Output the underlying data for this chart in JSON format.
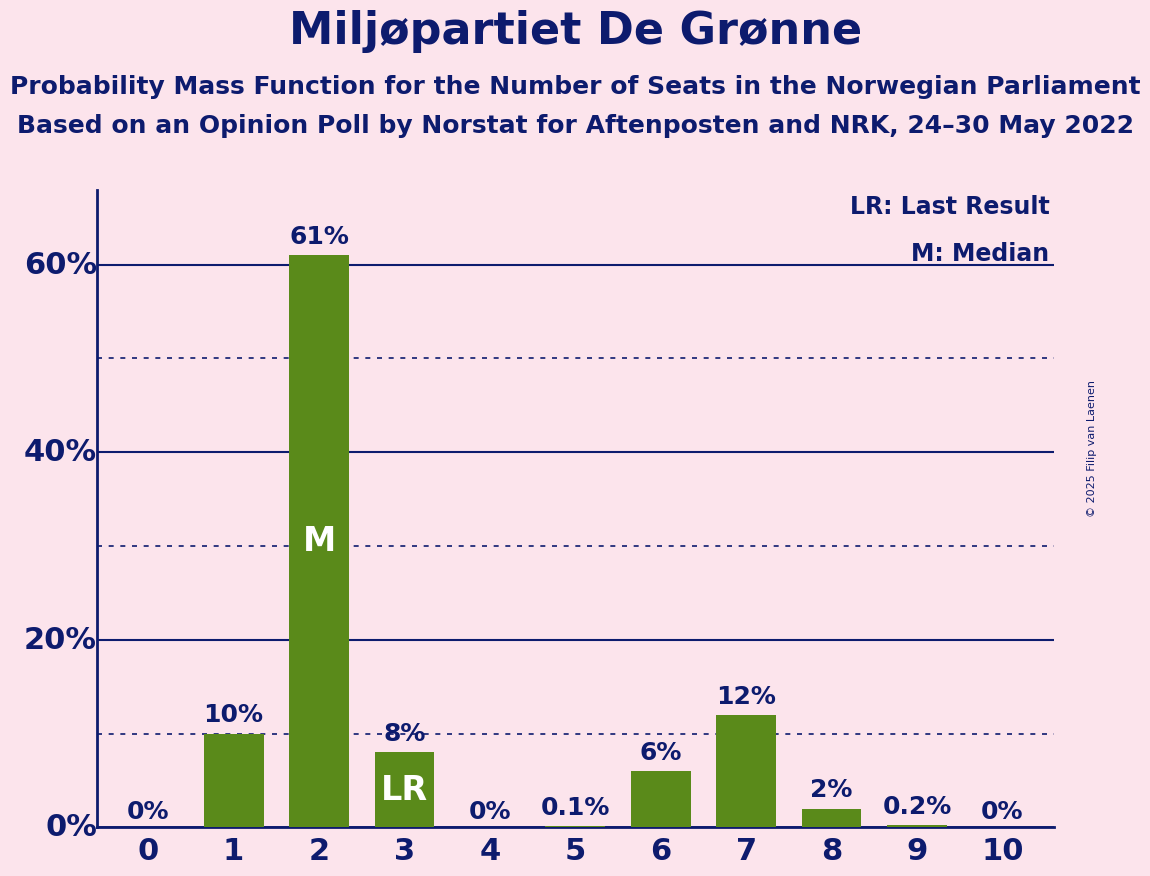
{
  "title": "Miljøpartiet De Grønne",
  "subtitle1": "Probability Mass Function for the Number of Seats in the Norwegian Parliament",
  "subtitle2": "Based on an Opinion Poll by Norstat for Aftenposten and NRK, 24–30 May 2022",
  "copyright": "© 2025 Filip van Laenen",
  "legend_lr": "LR: Last Result",
  "legend_m": "M: Median",
  "categories": [
    0,
    1,
    2,
    3,
    4,
    5,
    6,
    7,
    8,
    9,
    10
  ],
  "values": [
    0.0,
    10.0,
    61.0,
    8.0,
    0.0,
    0.1,
    6.0,
    12.0,
    2.0,
    0.2,
    0.0
  ],
  "bar_labels": [
    "0%",
    "10%",
    "61%",
    "8%",
    "0%",
    "0.1%",
    "6%",
    "12%",
    "2%",
    "0.2%",
    "0%"
  ],
  "special_labels": {
    "2": "M",
    "3": "LR"
  },
  "median_bar": 2,
  "lr_bar": 3,
  "bar_color": "#5a8a1a",
  "background_color": "#fce4ec",
  "title_color": "#0d1b6e",
  "axis_color": "#0d1b6e",
  "label_color": "#0d1b6e",
  "special_label_color": "#ffffff",
  "ylim": [
    0,
    68
  ],
  "yticks_solid": [
    0,
    20,
    40,
    60
  ],
  "yticks_dotted": [
    10,
    30,
    50
  ],
  "title_fontsize": 32,
  "subtitle_fontsize": 18,
  "tick_fontsize": 22,
  "label_fontsize": 18,
  "special_label_fontsize": 24,
  "legend_fontsize": 17
}
